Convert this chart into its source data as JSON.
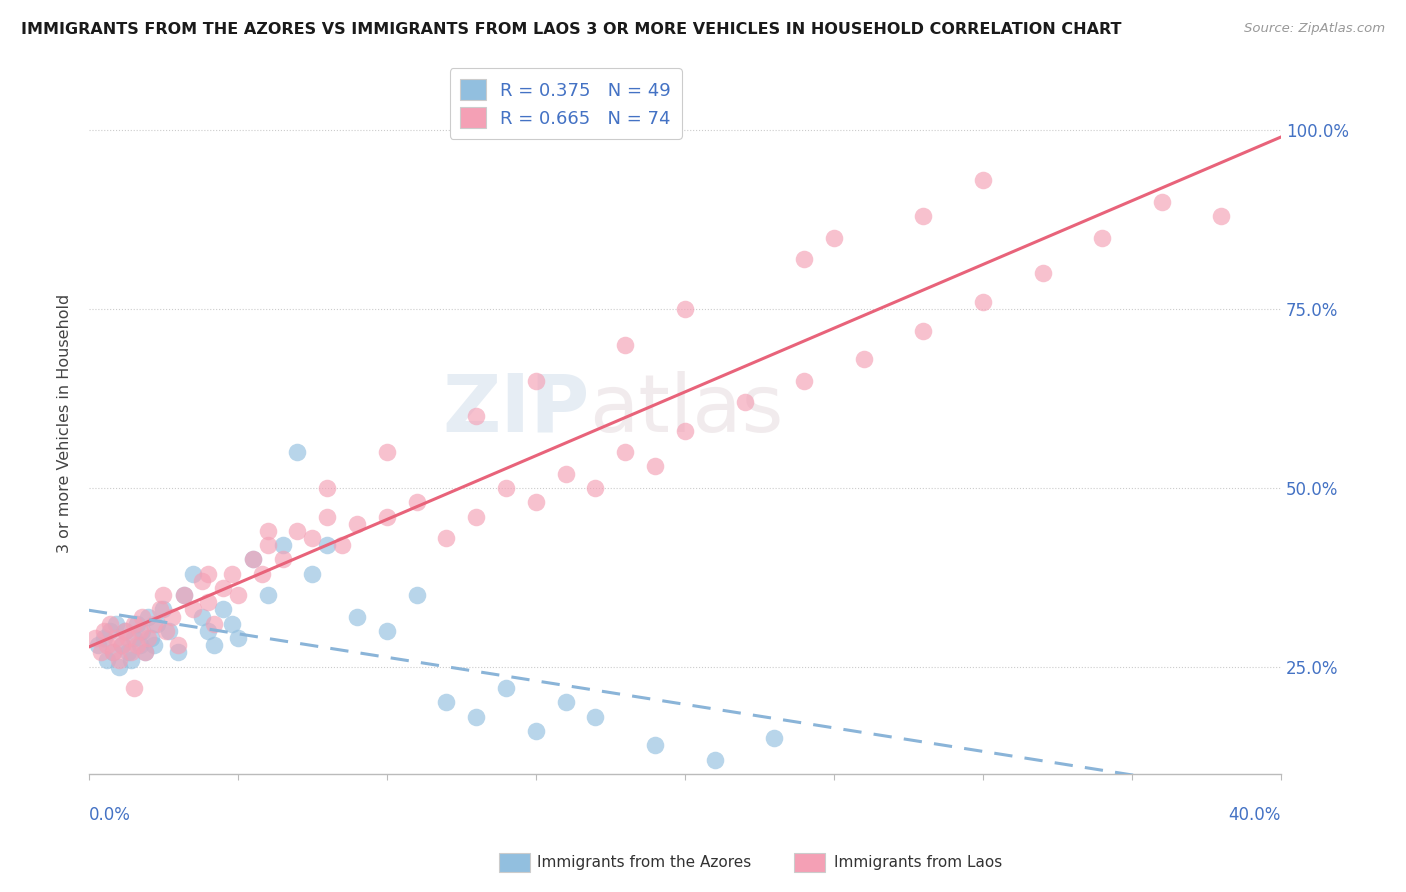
{
  "title": "IMMIGRANTS FROM THE AZORES VS IMMIGRANTS FROM LAOS 3 OR MORE VEHICLES IN HOUSEHOLD CORRELATION CHART",
  "source": "Source: ZipAtlas.com",
  "ylabel": "3 or more Vehicles in Household",
  "y_ticks": [
    "25.0%",
    "50.0%",
    "75.0%",
    "100.0%"
  ],
  "y_tick_vals": [
    0.25,
    0.5,
    0.75,
    1.0
  ],
  "xlim": [
    0.0,
    0.4
  ],
  "ylim": [
    0.1,
    1.08
  ],
  "legend_r1": "R = 0.375",
  "legend_n1": "N = 49",
  "legend_r2": "R = 0.665",
  "legend_n2": "N = 74",
  "watermark_zip": "ZIP",
  "watermark_atlas": "atlas",
  "color_azores": "#92BFDF",
  "color_laos": "#F4A0B5",
  "color_azores_line": "#8AB4D8",
  "color_laos_line": "#E8637A",
  "legend_label1": "Immigrants from the Azores",
  "legend_label2": "Immigrants from Laos",
  "azores_x": [
    0.003,
    0.005,
    0.006,
    0.007,
    0.008,
    0.009,
    0.01,
    0.011,
    0.012,
    0.013,
    0.014,
    0.015,
    0.016,
    0.017,
    0.018,
    0.019,
    0.02,
    0.021,
    0.022,
    0.023,
    0.025,
    0.027,
    0.03,
    0.032,
    0.035,
    0.038,
    0.04,
    0.042,
    0.045,
    0.048,
    0.05,
    0.055,
    0.06,
    0.065,
    0.07,
    0.075,
    0.08,
    0.09,
    0.1,
    0.11,
    0.12,
    0.13,
    0.14,
    0.15,
    0.16,
    0.17,
    0.19,
    0.21,
    0.23
  ],
  "azores_y": [
    0.28,
    0.29,
    0.26,
    0.3,
    0.27,
    0.31,
    0.25,
    0.28,
    0.3,
    0.27,
    0.26,
    0.29,
    0.31,
    0.28,
    0.3,
    0.27,
    0.32,
    0.29,
    0.28,
    0.31,
    0.33,
    0.3,
    0.27,
    0.35,
    0.38,
    0.32,
    0.3,
    0.28,
    0.33,
    0.31,
    0.29,
    0.4,
    0.35,
    0.42,
    0.55,
    0.38,
    0.42,
    0.32,
    0.3,
    0.35,
    0.2,
    0.18,
    0.22,
    0.16,
    0.2,
    0.18,
    0.14,
    0.12,
    0.15
  ],
  "laos_x": [
    0.002,
    0.004,
    0.005,
    0.006,
    0.007,
    0.008,
    0.009,
    0.01,
    0.011,
    0.012,
    0.013,
    0.014,
    0.015,
    0.016,
    0.017,
    0.018,
    0.019,
    0.02,
    0.022,
    0.024,
    0.026,
    0.028,
    0.03,
    0.032,
    0.035,
    0.038,
    0.04,
    0.042,
    0.045,
    0.048,
    0.05,
    0.055,
    0.058,
    0.06,
    0.065,
    0.07,
    0.075,
    0.08,
    0.085,
    0.09,
    0.1,
    0.11,
    0.12,
    0.13,
    0.14,
    0.15,
    0.16,
    0.17,
    0.18,
    0.19,
    0.2,
    0.22,
    0.24,
    0.26,
    0.28,
    0.3,
    0.32,
    0.34,
    0.36,
    0.38,
    0.3,
    0.28,
    0.25,
    0.24,
    0.2,
    0.18,
    0.15,
    0.13,
    0.1,
    0.08,
    0.06,
    0.04,
    0.025,
    0.015
  ],
  "laos_y": [
    0.29,
    0.27,
    0.3,
    0.28,
    0.31,
    0.27,
    0.29,
    0.26,
    0.28,
    0.3,
    0.29,
    0.27,
    0.31,
    0.28,
    0.3,
    0.32,
    0.27,
    0.29,
    0.31,
    0.33,
    0.3,
    0.32,
    0.28,
    0.35,
    0.33,
    0.37,
    0.34,
    0.31,
    0.36,
    0.38,
    0.35,
    0.4,
    0.38,
    0.42,
    0.4,
    0.44,
    0.43,
    0.46,
    0.42,
    0.45,
    0.46,
    0.48,
    0.43,
    0.46,
    0.5,
    0.48,
    0.52,
    0.5,
    0.55,
    0.53,
    0.58,
    0.62,
    0.65,
    0.68,
    0.72,
    0.76,
    0.8,
    0.85,
    0.9,
    0.88,
    0.93,
    0.88,
    0.85,
    0.82,
    0.75,
    0.7,
    0.65,
    0.6,
    0.55,
    0.5,
    0.44,
    0.38,
    0.35,
    0.22
  ]
}
